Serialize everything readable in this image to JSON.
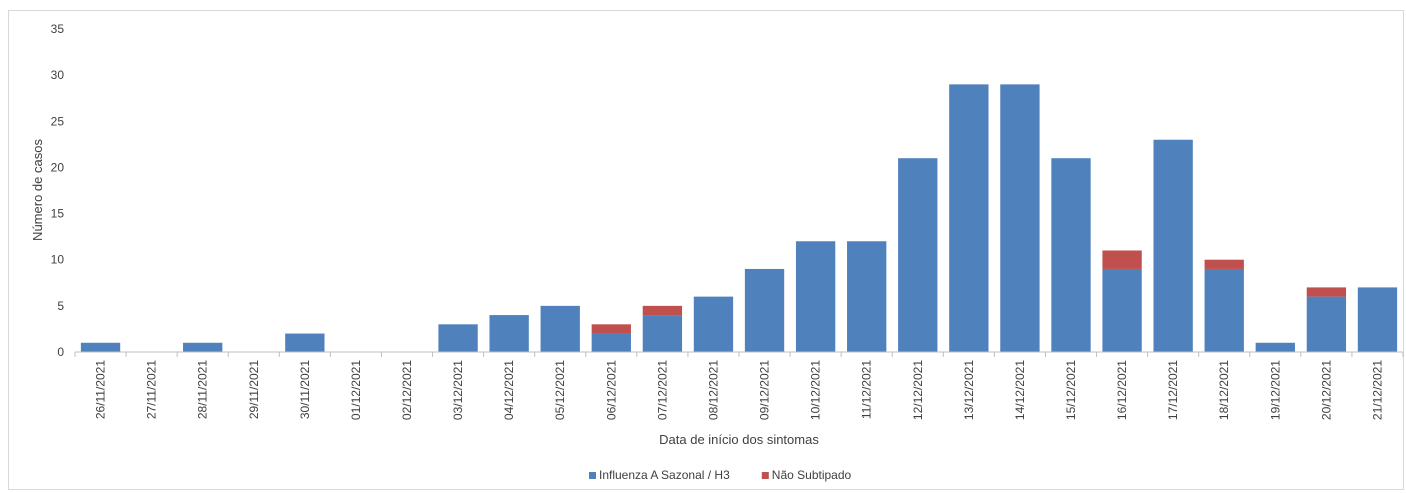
{
  "chart_data": {
    "type": "bar",
    "stacked": true,
    "title": "",
    "xlabel": "Data de início dos sintomas",
    "ylabel": "Número de casos",
    "ylim": [
      0,
      35
    ],
    "yticks": [
      0,
      5,
      10,
      15,
      20,
      25,
      30,
      35
    ],
    "grid": false,
    "legend_position": "bottom",
    "categories": [
      "26/11/2021",
      "27/11/2021",
      "28/11/2021",
      "29/11/2021",
      "30/11/2021",
      "01/12/2021",
      "02/12/2021",
      "03/12/2021",
      "04/12/2021",
      "05/12/2021",
      "06/12/2021",
      "07/12/2021",
      "08/12/2021",
      "09/12/2021",
      "10/12/2021",
      "11/12/2021",
      "12/12/2021",
      "13/12/2021",
      "14/12/2021",
      "15/12/2021",
      "16/12/2021",
      "17/12/2021",
      "18/12/2021",
      "19/12/2021",
      "20/12/2021",
      "21/12/2021"
    ],
    "series": [
      {
        "name": "Influenza A Sazonal / H3",
        "color": "#4f81bd",
        "values": [
          1,
          0,
          1,
          0,
          2,
          0,
          0,
          3,
          4,
          5,
          2,
          4,
          6,
          9,
          12,
          12,
          21,
          29,
          29,
          21,
          9,
          23,
          9,
          1,
          6,
          7
        ]
      },
      {
        "name": "Não Subtipado",
        "color": "#c0504d",
        "values": [
          0,
          0,
          0,
          0,
          0,
          0,
          0,
          0,
          0,
          0,
          1,
          1,
          0,
          0,
          0,
          0,
          0,
          0,
          0,
          0,
          2,
          0,
          1,
          0,
          1,
          0
        ]
      }
    ]
  }
}
